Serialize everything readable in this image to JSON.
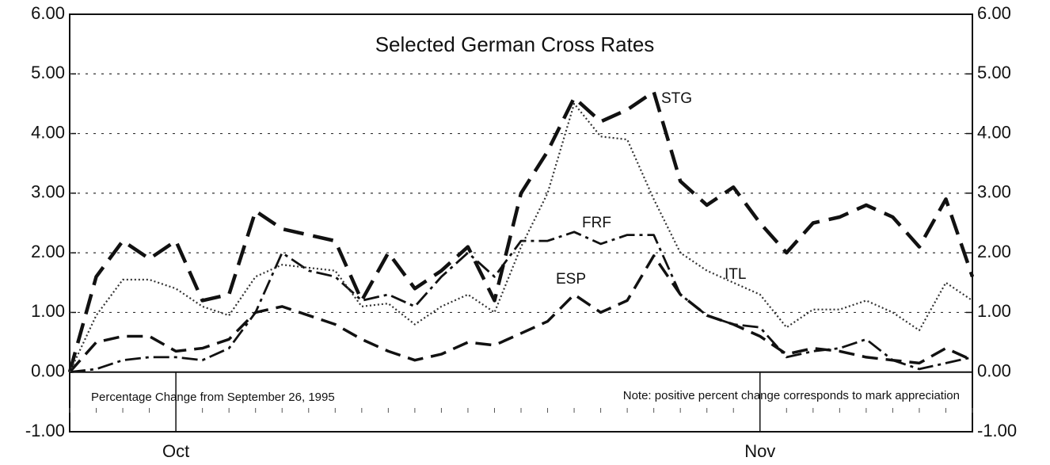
{
  "chart_data": {
    "type": "line",
    "title": "Selected German Cross Rates",
    "annotations": [
      "Percentage Change from September 26, 1995",
      "Note: positive percent change corresponds to mark appreciation"
    ],
    "categories": [
      null,
      null,
      null,
      null,
      "Oct",
      null,
      null,
      null,
      null,
      null,
      null,
      null,
      null,
      null,
      null,
      null,
      null,
      null,
      null,
      null,
      null,
      null,
      null,
      null,
      null,
      null,
      "Nov",
      null,
      null,
      null,
      null,
      null,
      null,
      null,
      null
    ],
    "series": [
      {
        "name": "STG",
        "color": "#111111",
        "values": [
          0,
          1.6,
          2.2,
          1.9,
          2.2,
          1.2,
          1.3,
          2.7,
          2.4,
          2.3,
          2.2,
          1.2,
          2.0,
          1.4,
          1.7,
          2.1,
          1.2,
          3.0,
          3.7,
          4.6,
          4.2,
          4.4,
          4.7,
          3.2,
          2.8,
          3.1,
          2.5,
          2.0,
          2.5,
          2.6,
          2.8,
          2.6,
          2.1,
          2.9,
          1.6
        ]
      },
      {
        "name": "FRF",
        "color": "#111111",
        "values": [
          0,
          0.05,
          0.2,
          0.25,
          0.25,
          0.2,
          0.4,
          1.0,
          2.0,
          1.7,
          1.6,
          1.2,
          1.3,
          1.1,
          1.6,
          2.0,
          1.6,
          2.2,
          2.2,
          2.35,
          2.15,
          2.3,
          2.3,
          1.3,
          0.95,
          0.8,
          0.75,
          0.25,
          0.35,
          0.4,
          0.55,
          0.2,
          0.05,
          0.15,
          0.25
        ]
      },
      {
        "name": "ESP",
        "color": "#111111",
        "values": [
          0,
          0.5,
          0.6,
          0.6,
          0.35,
          0.4,
          0.55,
          1.0,
          1.1,
          0.95,
          0.8,
          0.55,
          0.35,
          0.2,
          0.3,
          0.5,
          0.45,
          0.65,
          0.85,
          1.3,
          1.0,
          1.2,
          1.95,
          1.3,
          0.95,
          0.8,
          0.6,
          0.3,
          0.4,
          0.35,
          0.25,
          0.2,
          0.15,
          0.4,
          0.2
        ]
      },
      {
        "name": "ITL",
        "color": "#333333",
        "values": [
          0,
          0.95,
          1.55,
          1.55,
          1.4,
          1.1,
          0.95,
          1.6,
          1.8,
          1.75,
          1.7,
          1.1,
          1.15,
          0.8,
          1.1,
          1.3,
          1.0,
          2.1,
          3.0,
          4.5,
          3.95,
          3.9,
          2.9,
          2.0,
          1.7,
          1.5,
          1.3,
          0.75,
          1.05,
          1.05,
          1.2,
          1.0,
          0.7,
          1.5,
          1.2
        ]
      }
    ],
    "ylim": [
      -1,
      6
    ],
    "yticks": [
      {
        "value": -1,
        "label": "-1.00"
      },
      {
        "value": 0,
        "label": "0.00"
      },
      {
        "value": 1,
        "label": "1.00"
      },
      {
        "value": 2,
        "label": "2.00"
      },
      {
        "value": 3,
        "label": "3.00"
      },
      {
        "value": 4,
        "label": "4.00"
      },
      {
        "value": 5,
        "label": "5.00"
      },
      {
        "value": 6,
        "label": "6.00"
      }
    ],
    "y2lim": [
      -1,
      6
    ],
    "y2ticks": [
      {
        "value": -1,
        "label": "-1.00"
      },
      {
        "value": 0,
        "label": "0.00"
      },
      {
        "value": 1,
        "label": "1.00"
      },
      {
        "value": 2,
        "label": "2.00"
      },
      {
        "value": 3,
        "label": "3.00"
      },
      {
        "value": 4,
        "label": "4.00"
      },
      {
        "value": 5,
        "label": "5.00"
      },
      {
        "value": 6,
        "label": "6.00"
      }
    ],
    "grid": true
  }
}
